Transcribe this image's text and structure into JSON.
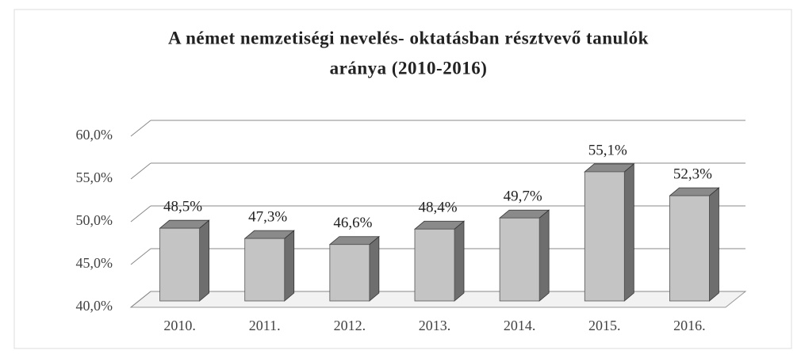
{
  "chart_data": {
    "type": "bar3d",
    "title": "A német nemzetiségi nevelés- oktatásban résztvevő tanulók",
    "subtitle": "aránya  (2010-2016)",
    "categories": [
      "2010.",
      "2011.",
      "2012.",
      "2013.",
      "2014.",
      "2015.",
      "2016."
    ],
    "values": [
      48.5,
      47.3,
      46.6,
      48.4,
      49.7,
      55.1,
      52.3
    ],
    "value_labels": [
      "48,5%",
      "47,3%",
      "46,6%",
      "48,4%",
      "49,7%",
      "55,1%",
      "52,3%"
    ],
    "color": "#c4c4c4",
    "ylim": [
      40,
      60
    ],
    "yticks": [
      {
        "value": 40,
        "label": "40,0%"
      },
      {
        "value": 45,
        "label": "45,0%"
      },
      {
        "value": 50,
        "label": "50,0%"
      },
      {
        "value": 55,
        "label": "55,0%"
      },
      {
        "value": 60,
        "label": "60,0%"
      }
    ],
    "grid": true
  }
}
